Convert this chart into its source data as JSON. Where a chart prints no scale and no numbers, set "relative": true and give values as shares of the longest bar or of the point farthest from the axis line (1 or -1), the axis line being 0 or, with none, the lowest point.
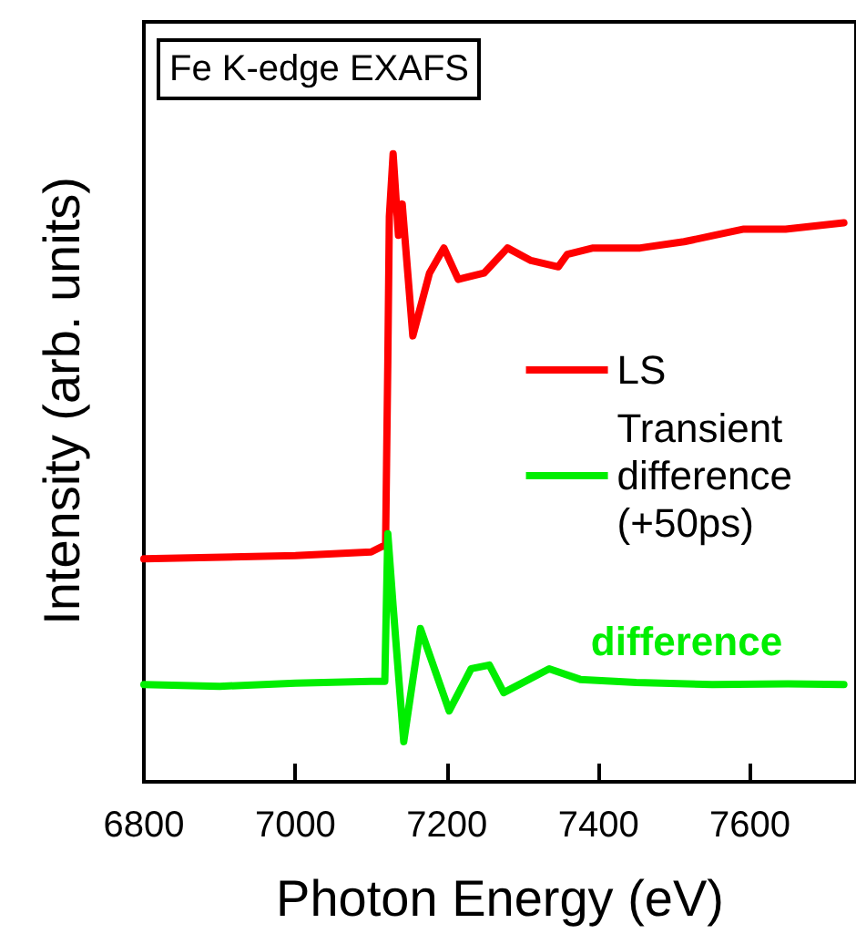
{
  "chart_data": {
    "type": "line",
    "title": "Fe K-edge EXAFS",
    "xlabel": "Photon Energy (eV)",
    "ylabel": "Intensity (arb. units)",
    "relative": true,
    "xlim": [
      6800,
      7740
    ],
    "xticks": [
      6800,
      7000,
      7200,
      7400,
      7600
    ],
    "tick_labels": "x",
    "legend": "right",
    "grid": false,
    "marker": "none",
    "line_style": "solid",
    "annotations": [
      "difference"
    ],
    "series": [
      {
        "name": "LS",
        "color": "#ff0000",
        "x": [
          6800,
          7000,
          7100,
          7115,
          7119,
          7122,
          7124,
          7129,
          7136,
          7141,
          7155,
          7177,
          7196,
          7215,
          7249,
          7280,
          7311,
          7347,
          7359,
          7393,
          7455,
          7513,
          7592,
          7647,
          7724
        ],
        "values": [
          0.355,
          0.36,
          0.366,
          0.375,
          0.375,
          0.67,
          0.9,
          1,
          0.87,
          0.92,
          0.71,
          0.81,
          0.85,
          0.8,
          0.81,
          0.85,
          0.83,
          0.82,
          0.84,
          0.85,
          0.85,
          0.86,
          0.88,
          0.88,
          0.89
        ]
      },
      {
        "name": "Transient\ndifference\n(+50ps)",
        "color": "#00ee00",
        "x": [
          6800,
          6900,
          7000,
          7100,
          7118,
          7122,
          7129,
          7143,
          7165,
          7203,
          7232,
          7256,
          7275,
          7335,
          7376,
          7450,
          7550,
          7650,
          7724
        ],
        "values": [
          0.155,
          0.152,
          0.157,
          0.16,
          0.16,
          0.395,
          0.28,
          0.064,
          0.244,
          0.113,
          0.18,
          0.186,
          0.142,
          0.18,
          0.163,
          0.158,
          0.155,
          0.156,
          0.155
        ]
      }
    ]
  }
}
